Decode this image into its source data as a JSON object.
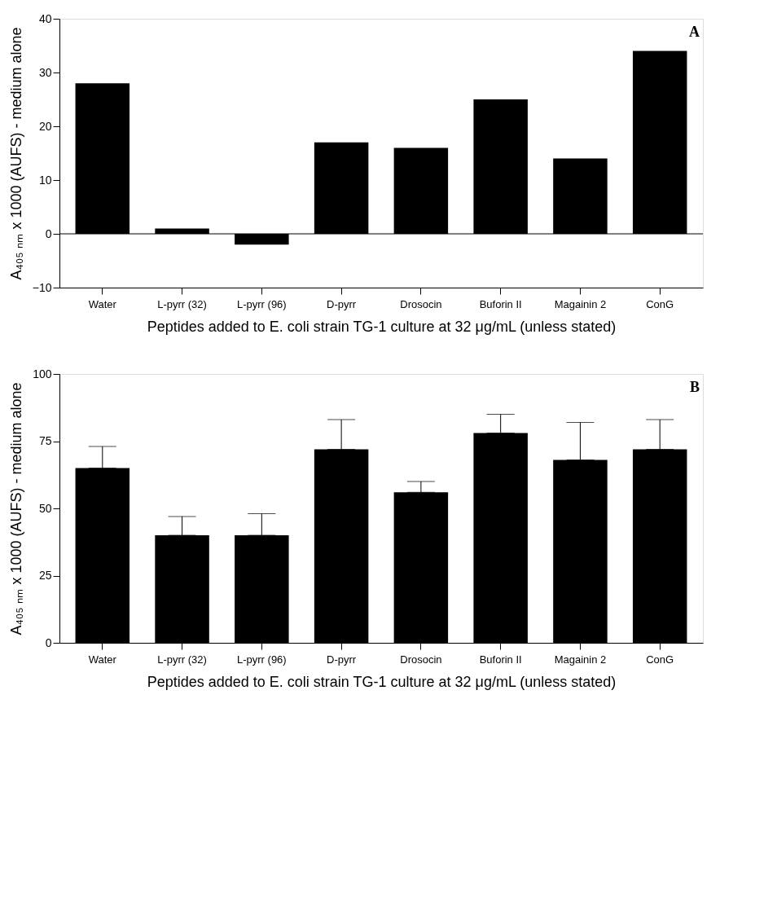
{
  "chart_data": [
    {
      "type": "bar",
      "categories": [
        "Water",
        "L-pyrr (32)",
        "L-pyrr (96)",
        "D-pyrr",
        "Drosocin",
        "Buforin II",
        "Magainin 2",
        "ConG"
      ],
      "series": [
        {
          "color": "#000000",
          "values": [
            28,
            1,
            -2,
            17,
            16,
            25,
            14,
            34
          ]
        }
      ],
      "ylabel": "A₄₀₅ ₙₘ x 1000 (AUFS) - medium alone",
      "xlabel": "Peptides added to E. coli strain TG-1 culture at 32 μg/mL (unless stated)",
      "ylim": [
        -10,
        40
      ],
      "yticks": [
        -10,
        0,
        10,
        20,
        30,
        40
      ],
      "grid": false,
      "ref_lines": [
        {
          "axis": "y",
          "value": 0,
          "label": null,
          "color": "#000000"
        }
      ],
      "annotations": [
        "A"
      ]
    },
    {
      "type": "bar",
      "categories": [
        "Water",
        "L-pyrr (32)",
        "L-pyrr (96)",
        "D-pyrr",
        "Drosocin",
        "Buforin II",
        "Magainin 2",
        "ConG"
      ],
      "series": [
        {
          "color": "#000000",
          "values": [
            65,
            40,
            40,
            72,
            56,
            78,
            68,
            72
          ],
          "errors": [
            [
              65,
              73
            ],
            [
              40,
              47
            ],
            [
              40,
              48
            ],
            [
              72,
              83
            ],
            [
              56,
              60
            ],
            [
              78,
              85
            ],
            [
              68,
              82
            ],
            [
              72,
              83
            ]
          ]
        }
      ],
      "ylabel": "A₄₀₅ ₙₘ x 1000 (AUFS) - medium alone",
      "xlabel": "Peptides added to E. coli strain TG-1 culture at 32 μg/mL (unless stated)",
      "ylim": [
        0,
        100
      ],
      "yticks": [
        0,
        25,
        50,
        75,
        100
      ],
      "grid": false,
      "annotations": [
        "B"
      ]
    }
  ]
}
